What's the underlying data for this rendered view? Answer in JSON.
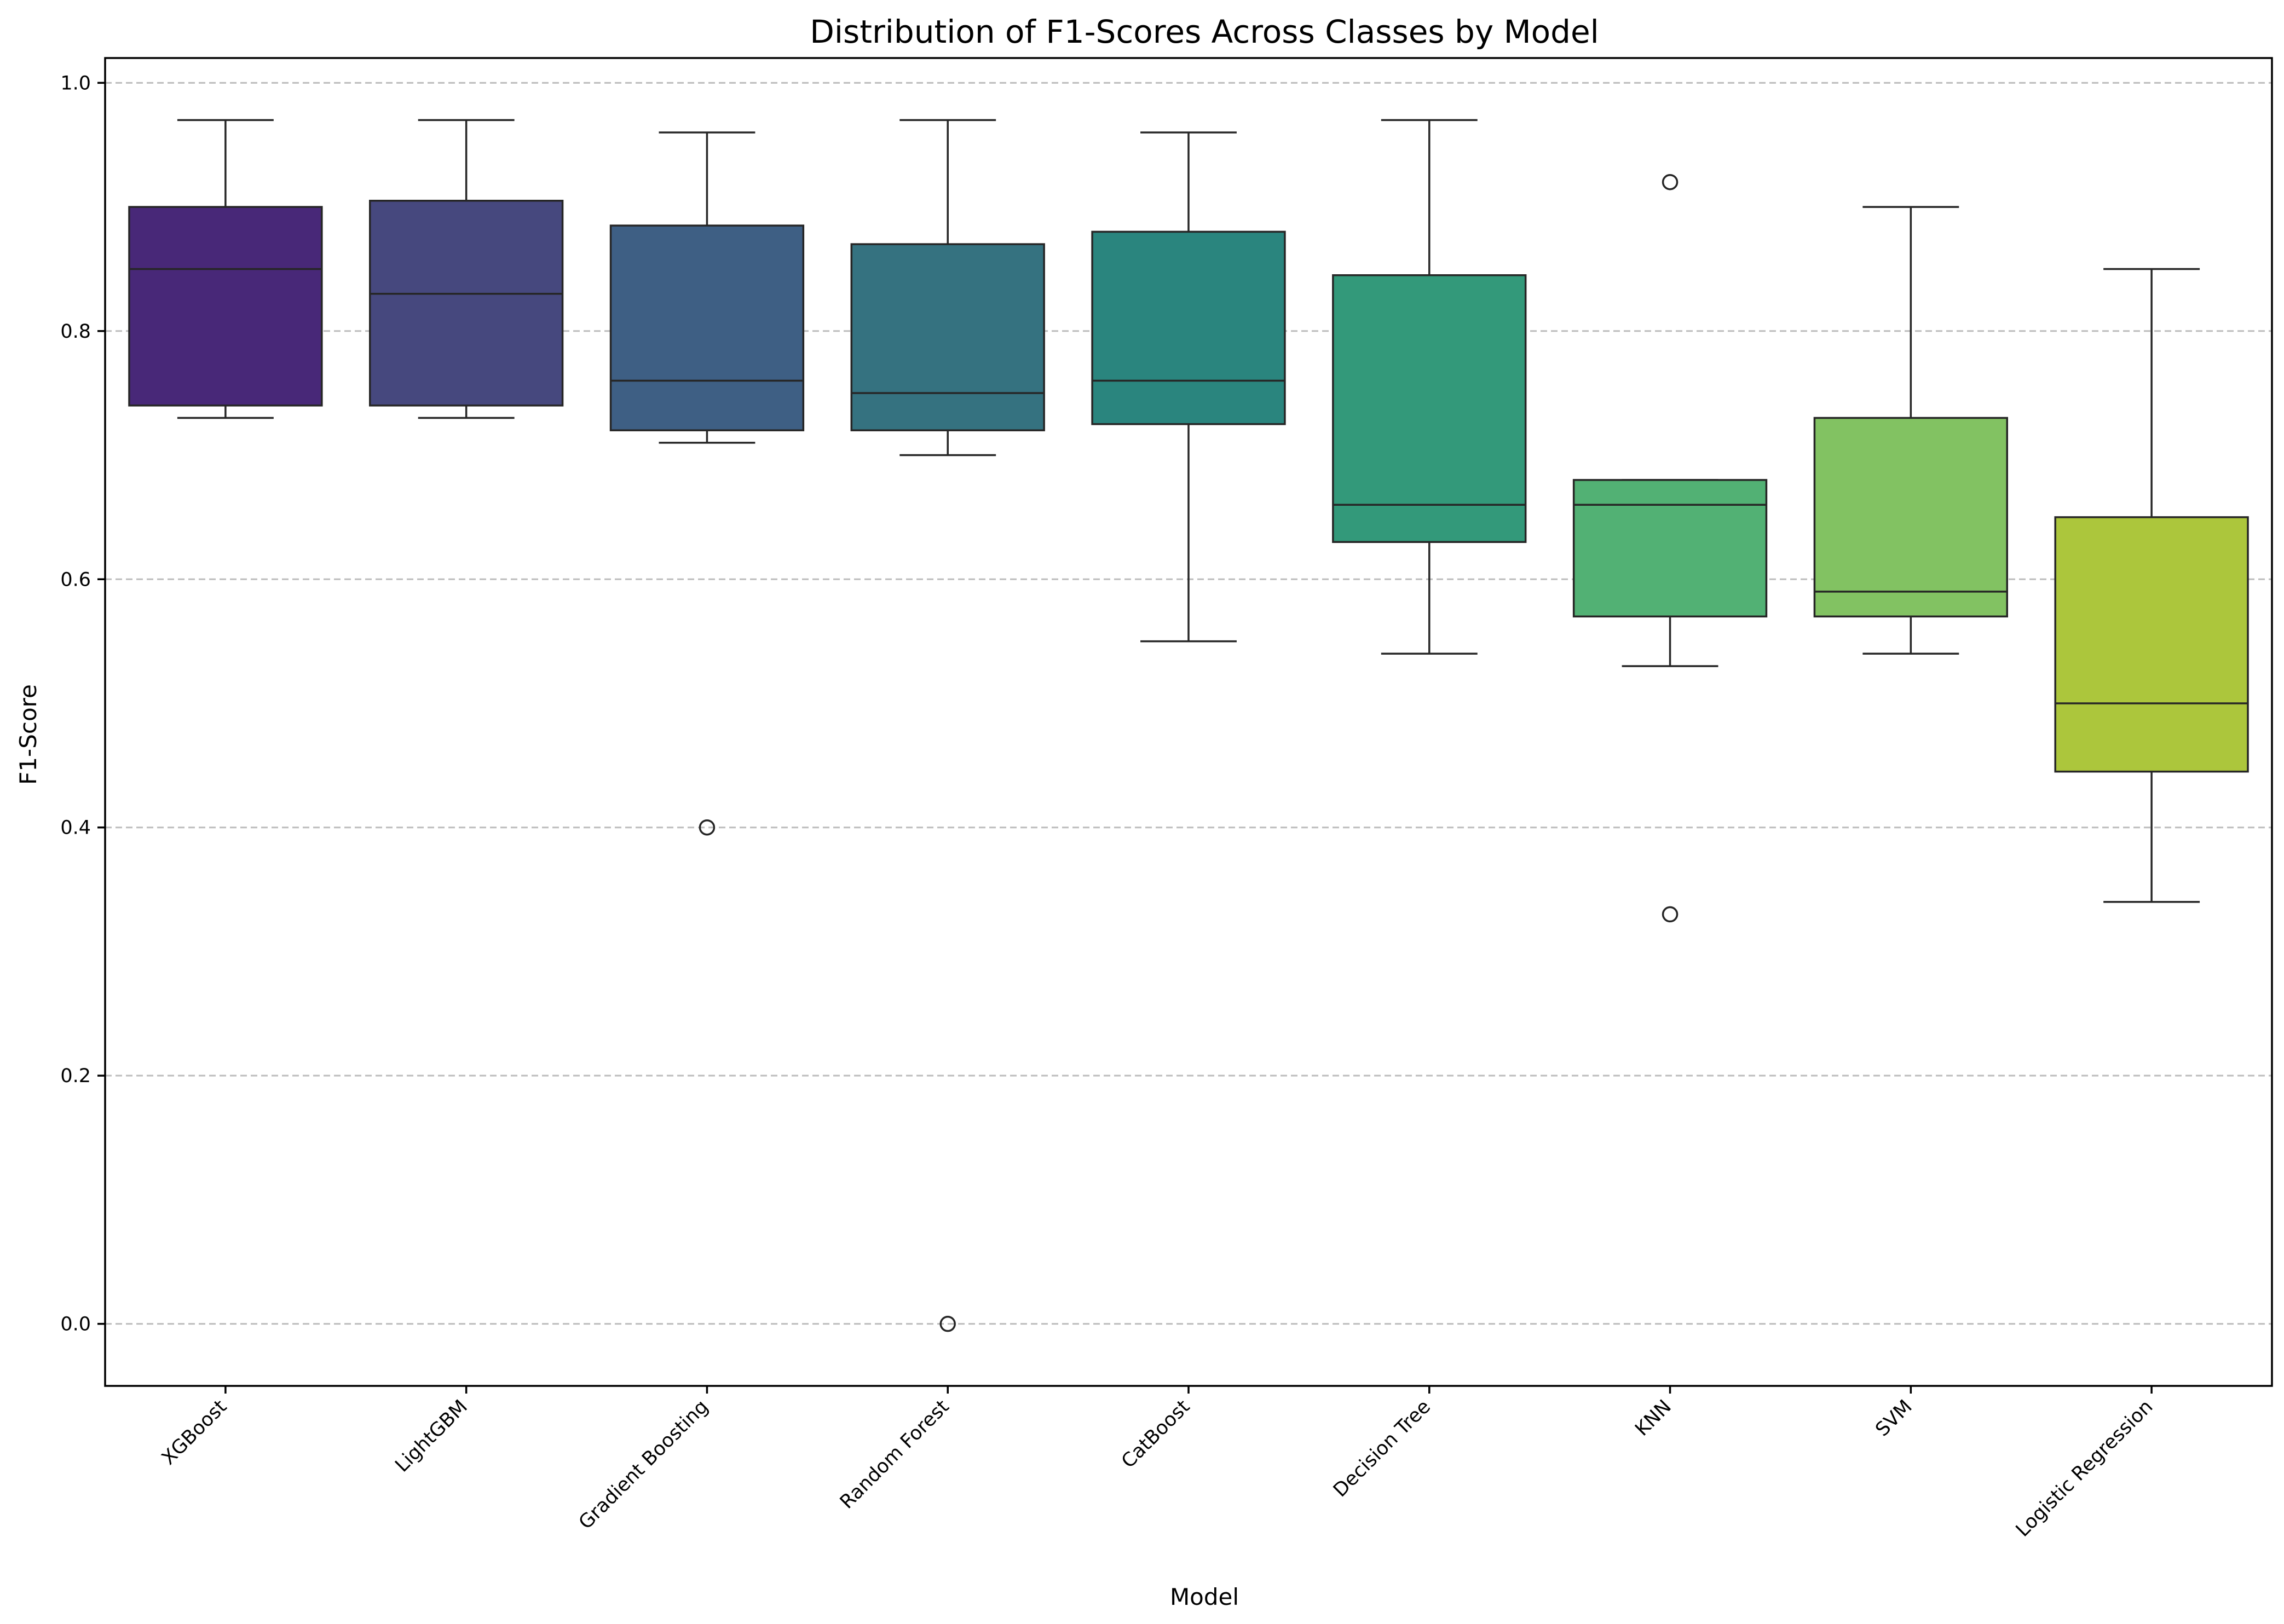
{
  "chart_data": {
    "type": "box",
    "title": "Distribution of F1-Scores Across Classes by Model",
    "xlabel": "Model",
    "ylabel": "F1-Score",
    "ylim": [
      -0.05,
      1.02
    ],
    "yticks": [
      0.0,
      0.2,
      0.4,
      0.6,
      0.8,
      1.0
    ],
    "ytick_labels": [
      "0.0",
      "0.2",
      "0.4",
      "0.6",
      "0.8",
      "1.0"
    ],
    "grid": "y-dashed",
    "categories": [
      "XGBoost",
      "LightGBM",
      "Gradient Boosting",
      "Random Forest",
      "CatBoost",
      "Decision Tree",
      "KNN",
      "SVM",
      "Logistic Regression"
    ],
    "boxes": [
      {
        "whisker_low": 0.73,
        "q1": 0.74,
        "median": 0.85,
        "q3": 0.9,
        "whisker_high": 0.97,
        "fliers": [],
        "color": "#482878"
      },
      {
        "whisker_low": 0.73,
        "q1": 0.74,
        "median": 0.83,
        "q3": 0.905,
        "whisker_high": 0.97,
        "fliers": [],
        "color": "#46487e"
      },
      {
        "whisker_low": 0.71,
        "q1": 0.72,
        "median": 0.76,
        "q3": 0.885,
        "whisker_high": 0.96,
        "fliers": [
          0.4
        ],
        "color": "#3e5f84"
      },
      {
        "whisker_low": 0.7,
        "q1": 0.72,
        "median": 0.75,
        "q3": 0.87,
        "whisker_high": 0.97,
        "fliers": [
          0.0
        ],
        "color": "#357280"
      },
      {
        "whisker_low": 0.55,
        "q1": 0.725,
        "median": 0.76,
        "q3": 0.88,
        "whisker_high": 0.96,
        "fliers": [],
        "color": "#2a857e"
      },
      {
        "whisker_low": 0.54,
        "q1": 0.63,
        "median": 0.66,
        "q3": 0.845,
        "whisker_high": 0.97,
        "fliers": [],
        "color": "#33997a"
      },
      {
        "whisker_low": 0.53,
        "q1": 0.57,
        "median": 0.66,
        "q3": 0.68,
        "whisker_high": 0.68,
        "fliers": [
          0.92,
          0.33
        ],
        "color": "#52b174"
      },
      {
        "whisker_low": 0.54,
        "q1": 0.57,
        "median": 0.59,
        "q3": 0.73,
        "whisker_high": 0.9,
        "fliers": [],
        "color": "#82c262"
      },
      {
        "whisker_low": 0.34,
        "q1": 0.445,
        "median": 0.5,
        "q3": 0.65,
        "whisker_high": 0.85,
        "fliers": [],
        "color": "#acc63c"
      }
    ]
  }
}
